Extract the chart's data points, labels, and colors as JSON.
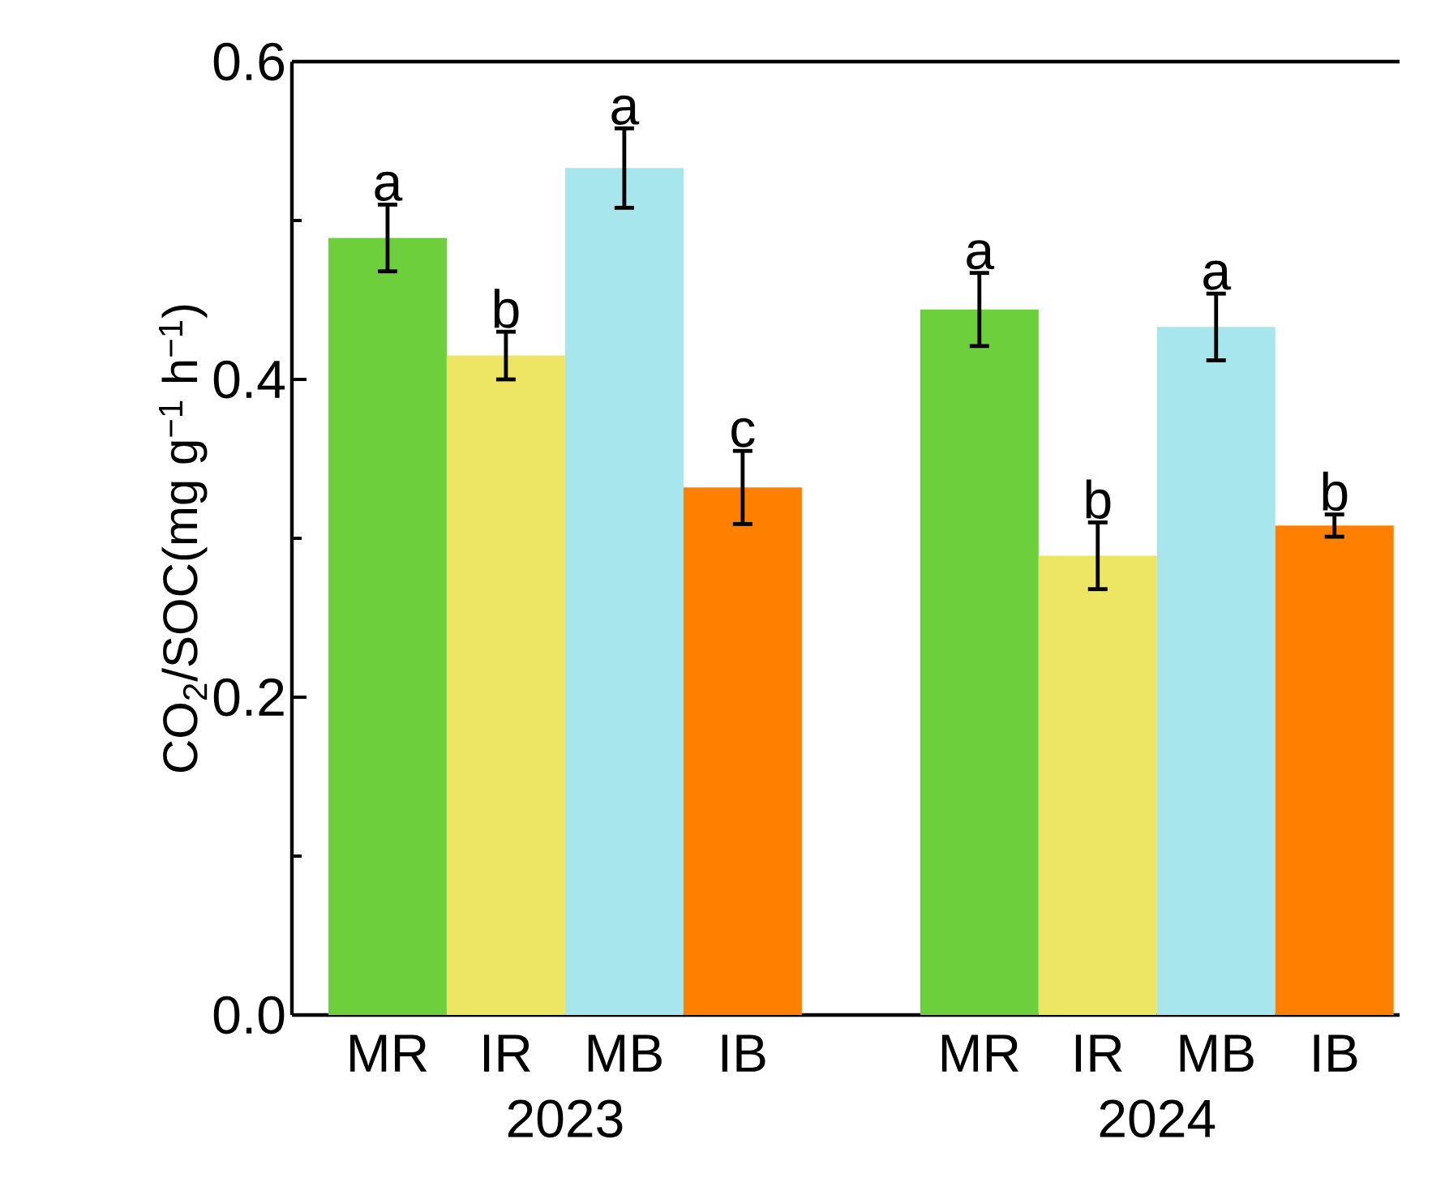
{
  "chart_data": {
    "type": "bar",
    "ylabel": "CO$_{2}$/SOC(mg g$^{−1}$ h$^{−1}$)",
    "categories": [
      "2023",
      "2024"
    ],
    "series": [
      {
        "name": "MR",
        "color": "#6ecf3d",
        "values": [
          0.489,
          0.444
        ],
        "errors": [
          0.021,
          0.023
        ],
        "value_labels": [
          "a",
          "a"
        ]
      },
      {
        "name": "IR",
        "color": "#ece664",
        "values": [
          0.415,
          0.289
        ],
        "errors": [
          0.015,
          0.021
        ],
        "value_labels": [
          "b",
          "b"
        ]
      },
      {
        "name": "MB",
        "color": "#a6e6ec",
        "values": [
          0.533,
          0.433
        ],
        "errors": [
          0.025,
          0.021
        ],
        "value_labels": [
          "a",
          "a"
        ]
      },
      {
        "name": "IB",
        "color": "#ff8000",
        "values": [
          0.332,
          0.308
        ],
        "errors": [
          0.023,
          0.007
        ],
        "value_labels": [
          "c",
          "b"
        ]
      }
    ],
    "ylim": [
      0,
      0.6
    ],
    "yticks": [
      {
        "value": 0.0,
        "label": "0.0"
      },
      0.2,
      0.4,
      0.6
    ],
    "grid": false
  }
}
